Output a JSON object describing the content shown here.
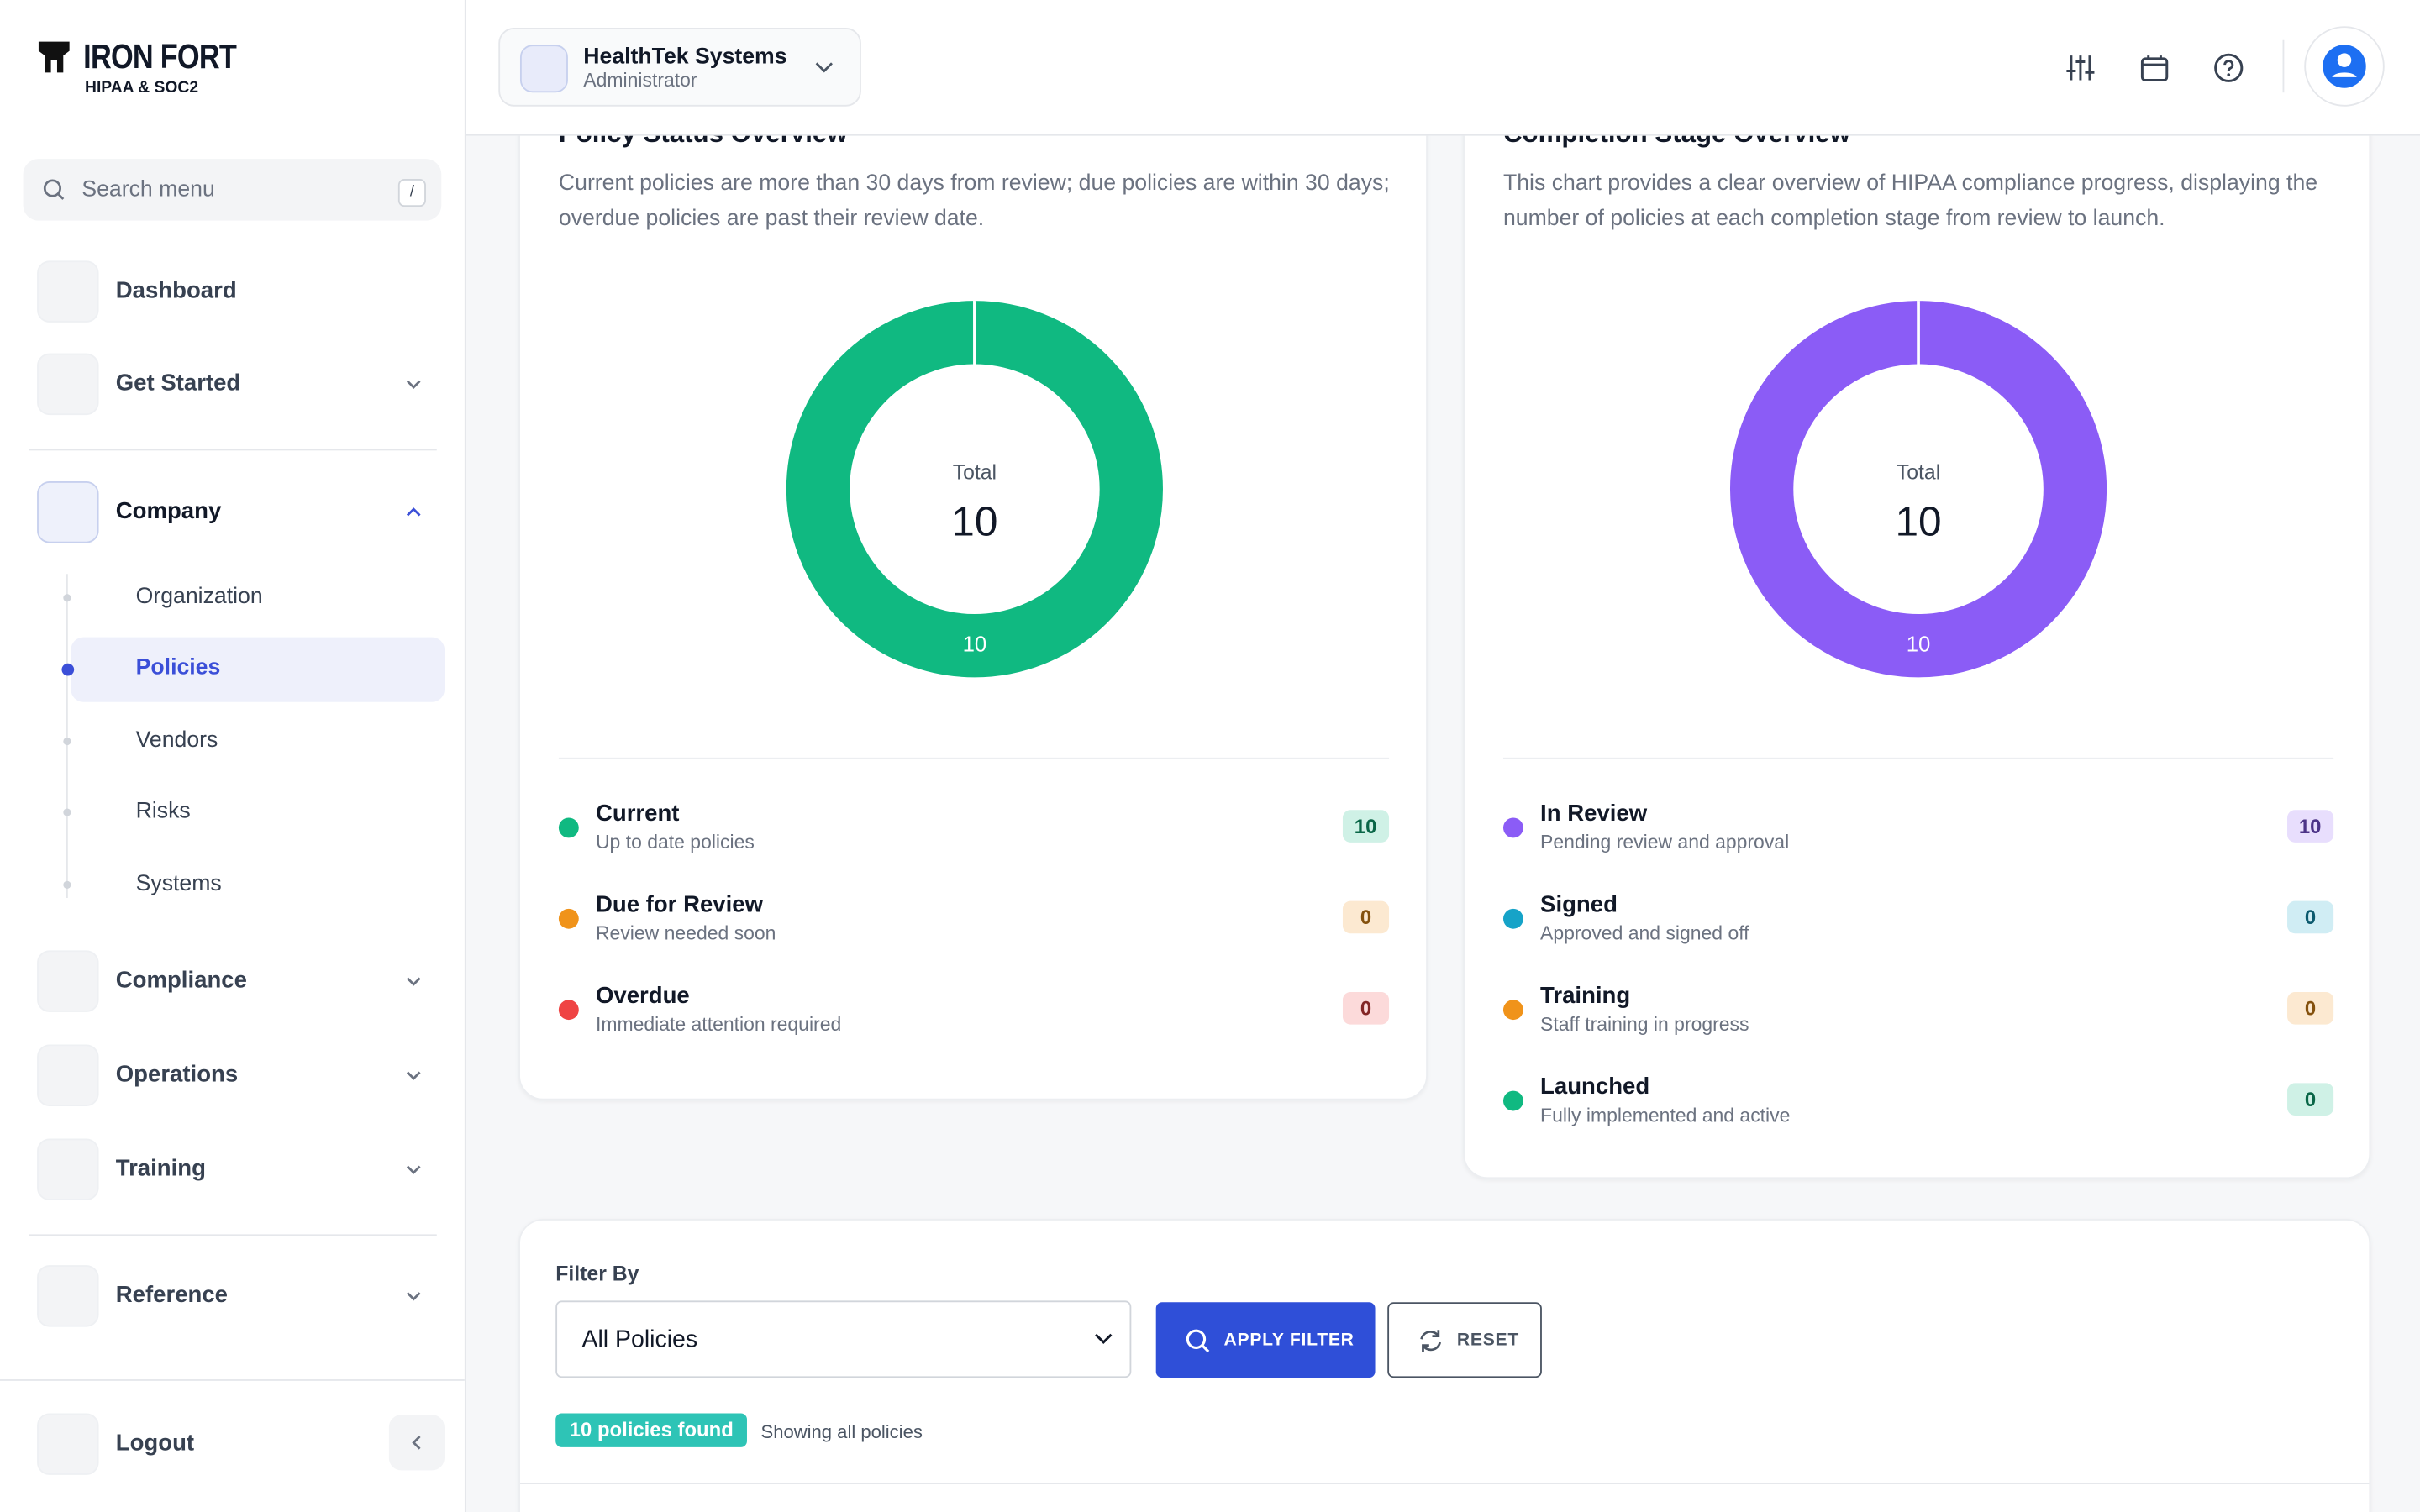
{
  "brand": {
    "name": "IRON FORT",
    "tagline": "HIPAA & SOC2"
  },
  "search": {
    "placeholder": "Search menu",
    "shortcut": "/"
  },
  "menu": [
    {
      "label": "Dashboard"
    },
    {
      "label": "Get Started"
    },
    {
      "label": "Company"
    },
    {
      "label": "Compliance"
    },
    {
      "label": "Operations"
    },
    {
      "label": "Training"
    },
    {
      "label": "Reference"
    }
  ],
  "submenu": [
    "Organization",
    "Policies",
    "Vendors",
    "Risks",
    "Systems"
  ],
  "logout": "Logout",
  "header": {
    "org": "HealthTek Systems",
    "role": "Administrator"
  },
  "cards": [
    {
      "title": "Policy Status Overview",
      "description": "Current policies are more than 30 days from review; due policies are within 30 days; overdue policies are past their review date.",
      "total_label": "Total",
      "total": 10,
      "items": [
        {
          "name": "Current",
          "desc": "Up to date policies",
          "value": 10,
          "color": "#10b981"
        },
        {
          "name": "Due for Review",
          "desc": "Review needed soon",
          "value": 0,
          "color": "#f0931a"
        },
        {
          "name": "Overdue",
          "desc": "Immediate attention required",
          "value": 0,
          "color": "#ef4444"
        }
      ]
    },
    {
      "title": "Completion Stage Overview",
      "description": "This chart provides a clear overview of HIPAA compliance progress, displaying the number of policies at each completion stage from review to launch.",
      "total_label": "Total",
      "total": 10,
      "items": [
        {
          "name": "In Review",
          "desc": "Pending review and approval",
          "value": 10,
          "color": "#8b5cf6"
        },
        {
          "name": "Signed",
          "desc": "Approved and signed off",
          "value": 0,
          "color": "#16a3c8"
        },
        {
          "name": "Training",
          "desc": "Staff training in progress",
          "value": 0,
          "color": "#f0931a"
        },
        {
          "name": "Launched",
          "desc": "Fully implemented and active",
          "value": 0,
          "color": "#10b981"
        }
      ]
    }
  ],
  "filter": {
    "label": "Filter By",
    "select": "All Policies",
    "apply": "APPLY FILTER",
    "reset": "RESET",
    "found": "10 policies found",
    "showing": "Showing all policies"
  }
}
